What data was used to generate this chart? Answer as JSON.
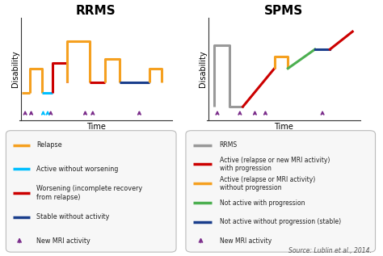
{
  "bg_color": "#ffffff",
  "title_rrms": "RRMS",
  "title_spms": "SPMS",
  "xlabel": "Time",
  "ylabel": "Disability",
  "source_text": "Source: Lublin et al., 2014.",
  "colors": {
    "orange": "#F5A020",
    "cyan": "#00BFFF",
    "red": "#CC0000",
    "blue": "#1A3E8C",
    "green": "#4CAF50",
    "gray": "#999999",
    "purple": "#7B2D8B",
    "dark": "#333333"
  },
  "rrms_legend": [
    {
      "color": "#F5A020",
      "label": "Relapse"
    },
    {
      "color": "#00BFFF",
      "label": "Active without worsening"
    },
    {
      "color": "#CC0000",
      "label": "Worsening (incomplete recovery\nfrom relapse)"
    },
    {
      "color": "#1A3E8C",
      "label": "Stable without activity"
    },
    {
      "color": "#7B2D8B",
      "label": "New MRI activity",
      "marker": "arrow"
    }
  ],
  "spms_legend": [
    {
      "color": "#999999",
      "label": "RRMS"
    },
    {
      "color": "#CC0000",
      "label": "Active (relapse or new MRI activity)\nwith progression"
    },
    {
      "color": "#F5A020",
      "label": "Active (relapse or MRI activity)\nwithout progression"
    },
    {
      "color": "#4CAF50",
      "label": "Not active with progression"
    },
    {
      "color": "#1A3E8C",
      "label": "Not active without progression (stable)"
    },
    {
      "color": "#7B2D8B",
      "label": "New MRI activity",
      "marker": "arrow"
    }
  ]
}
